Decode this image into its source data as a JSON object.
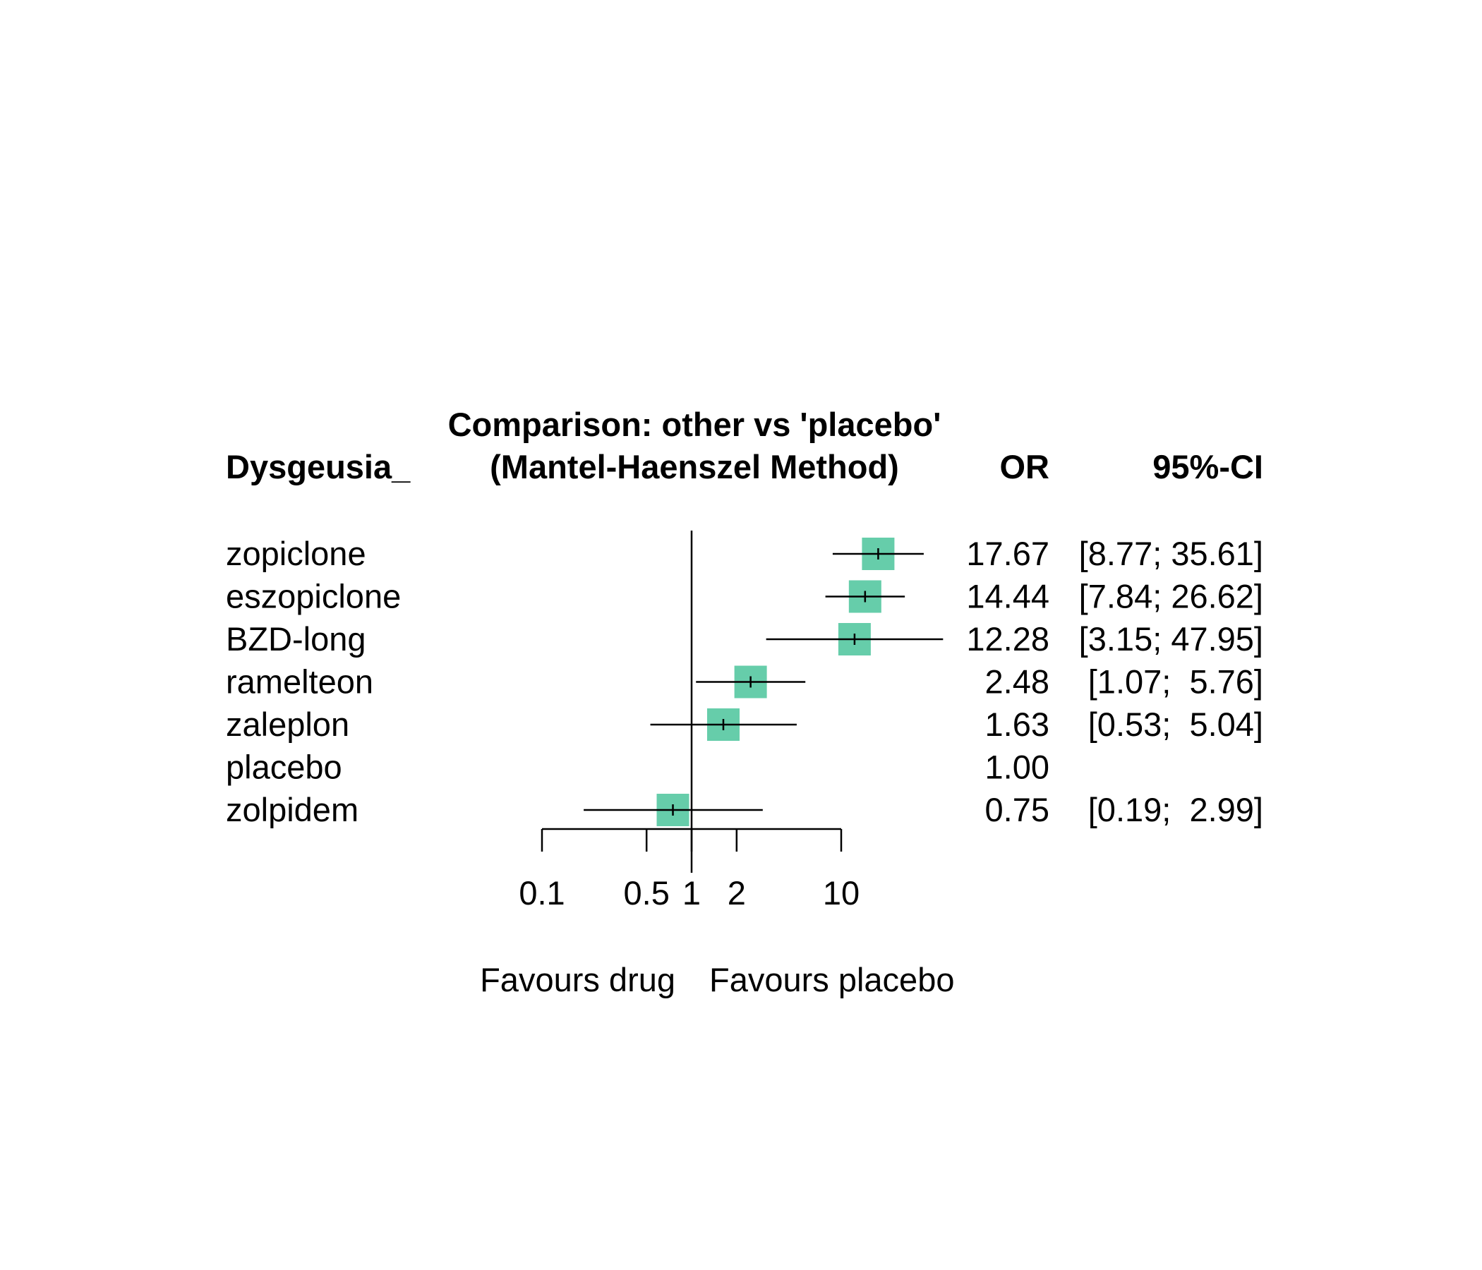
{
  "chart_data": {
    "type": "forest",
    "title": "Comparison: other vs 'placebo'",
    "subtitle": "(Mantel-Haenszel Method)",
    "column_headers": {
      "label": "Dysgeusia_",
      "estimate": "OR",
      "ci": "95%-CI"
    },
    "x_scale": "log",
    "xlim": [
      0.1,
      10
    ],
    "ticks": [
      0.1,
      0.5,
      1,
      2,
      10
    ],
    "tick_labels": [
      "0.1",
      "0.5",
      "1",
      "2",
      "10"
    ],
    "reference_value": 1,
    "favours_left": "Favours drug",
    "favours_right": "Favours placebo",
    "marker_color": "#66cdaa",
    "rows": [
      {
        "label": "zopiclone",
        "or": 17.67,
        "lower": 8.77,
        "upper": 35.61,
        "or_text": "17.67",
        "ci_text": "[8.77; 35.61]"
      },
      {
        "label": "eszopiclone",
        "or": 14.44,
        "lower": 7.84,
        "upper": 26.62,
        "or_text": "14.44",
        "ci_text": "[7.84; 26.62]"
      },
      {
        "label": "BZD-long",
        "or": 12.28,
        "lower": 3.15,
        "upper": 47.95,
        "or_text": "12.28",
        "ci_text": "[3.15; 47.95]"
      },
      {
        "label": "ramelteon",
        "or": 2.48,
        "lower": 1.07,
        "upper": 5.76,
        "or_text": "2.48",
        "ci_text": "[1.07;  5.76]"
      },
      {
        "label": "zaleplon",
        "or": 1.63,
        "lower": 0.53,
        "upper": 5.04,
        "or_text": "1.63",
        "ci_text": "[0.53;  5.04]"
      },
      {
        "label": "placebo",
        "or": 1.0,
        "lower": null,
        "upper": null,
        "or_text": "1.00",
        "ci_text": ""
      },
      {
        "label": "zolpidem",
        "or": 0.75,
        "lower": 0.19,
        "upper": 2.99,
        "or_text": "0.75",
        "ci_text": "[0.19;  2.99]"
      }
    ]
  }
}
